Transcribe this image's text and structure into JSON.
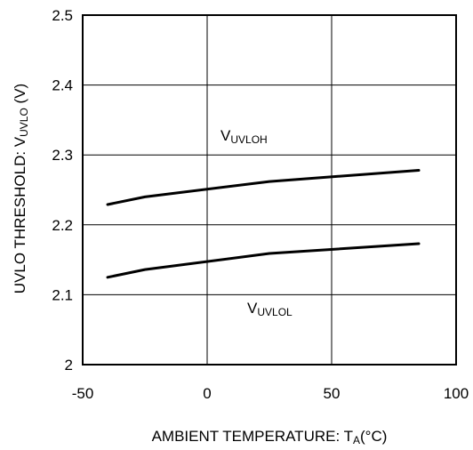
{
  "chart_data": {
    "type": "line",
    "xlabel": {
      "main": "AMBIENT TEMPERATURE: T",
      "sub": "A",
      "unit": "(°C)"
    },
    "ylabel": {
      "main": "UVLO THRESHOLD: V",
      "sub": "UVLO",
      "unit": " (V)"
    },
    "xlim": [
      -50,
      100
    ],
    "ylim": [
      2.0,
      2.5
    ],
    "x_ticks": [
      "-50",
      "0",
      "50",
      "100"
    ],
    "y_ticks": [
      "2",
      "2.1",
      "2.2",
      "2.3",
      "2.4",
      "2.5"
    ],
    "grid": true,
    "series": [
      {
        "id": "uvloh",
        "x": [
          -40,
          -25,
          25,
          85
        ],
        "y": [
          2.229,
          2.24,
          2.262,
          2.278
        ]
      },
      {
        "id": "uvlol",
        "x": [
          -40,
          -25,
          25,
          85
        ],
        "y": [
          2.125,
          2.136,
          2.159,
          2.173
        ]
      }
    ],
    "annotations": [
      {
        "main": "V",
        "sub": "UVLOH"
      },
      {
        "main": "V",
        "sub": "UVLOL"
      }
    ]
  }
}
